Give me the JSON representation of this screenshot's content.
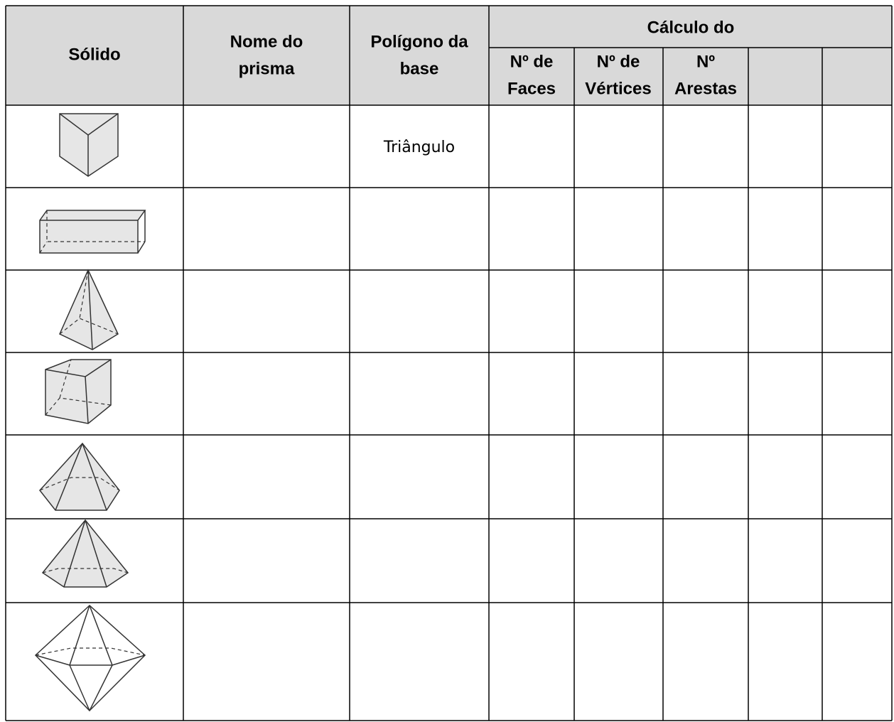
{
  "header": {
    "solid": "Sólido",
    "prism_name": [
      "Nome do",
      "prisma"
    ],
    "base_polygon": [
      "Polígono da",
      "base"
    ],
    "calculation": "Cálculo do",
    "faces": [
      "Nº de",
      "Faces"
    ],
    "vertices": [
      "Nº de",
      "Vértices"
    ],
    "edges": [
      "Nº",
      "Arestas"
    ]
  },
  "first_row": {
    "base_polygon": "Triângulo"
  }
}
